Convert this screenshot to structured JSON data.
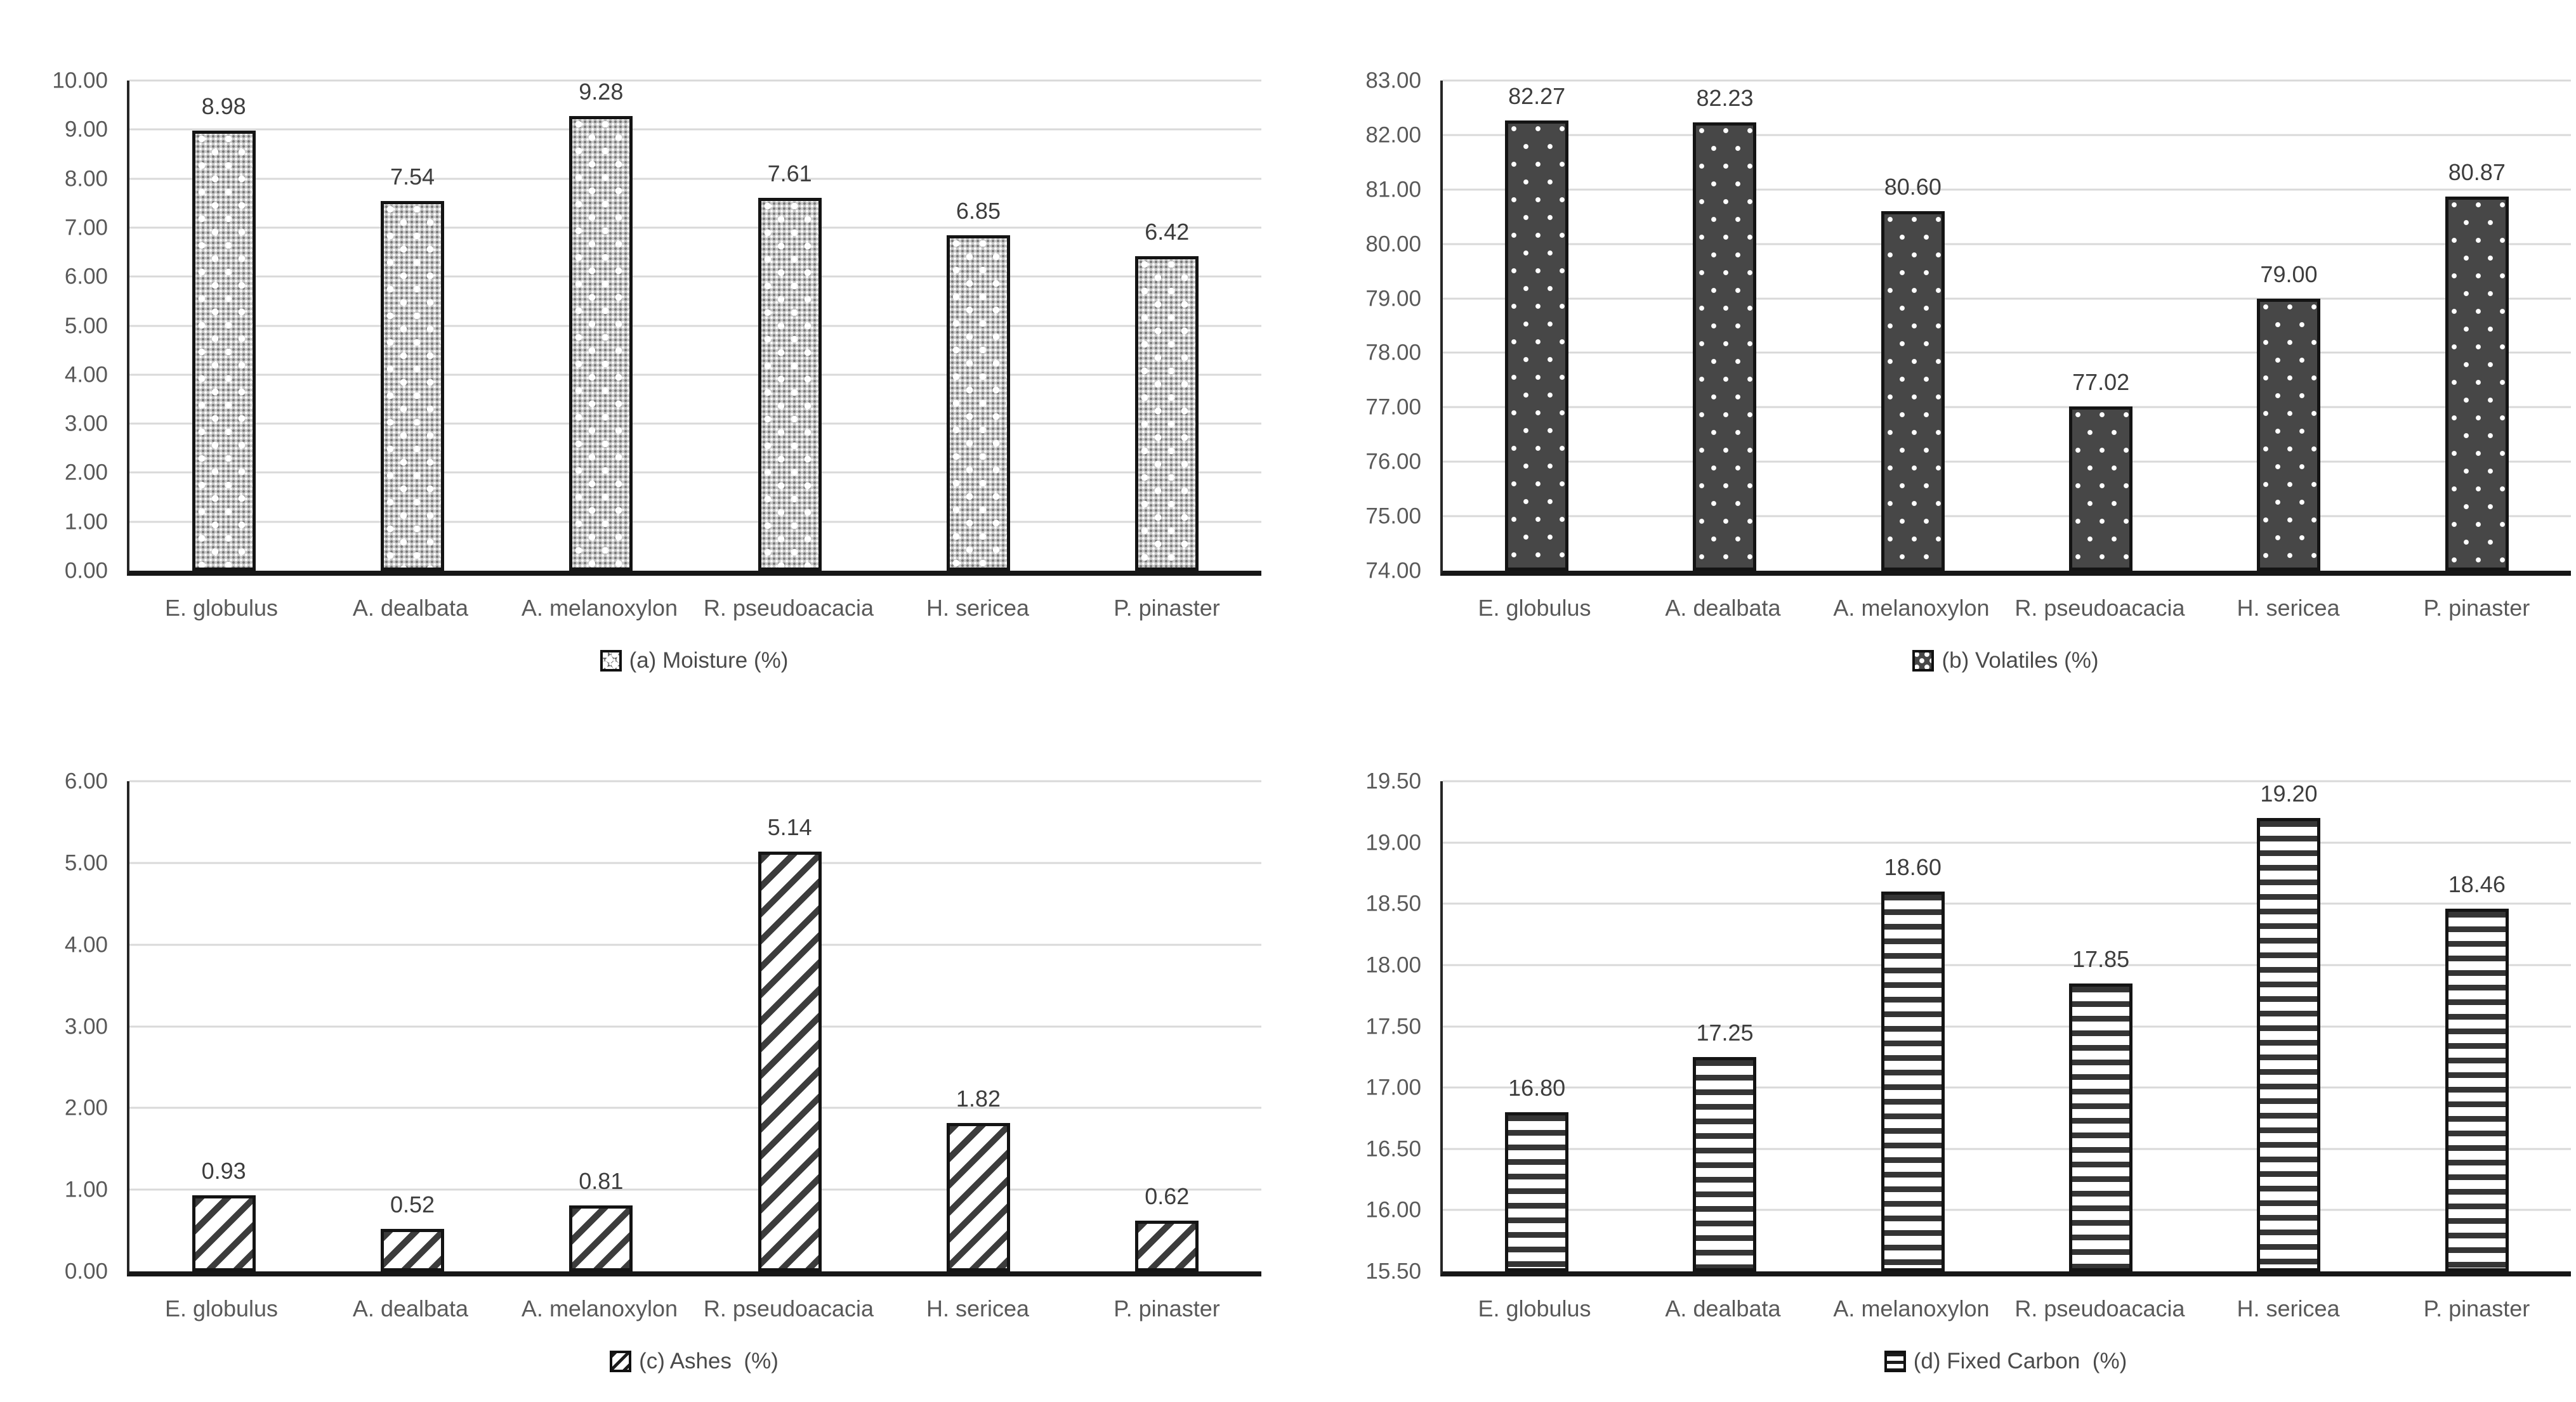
{
  "figure": {
    "background": "#ffffff",
    "grid_color": "#d9d9d9",
    "axis_color": "#262626",
    "baseline_color": "#171717",
    "tick_label_color": "#595959",
    "value_label_color": "#3d3d3d"
  },
  "chart_data": [
    {
      "id": "moisture",
      "type": "bar",
      "title": "",
      "legend": "(a) Moisture (%)",
      "legend_position": "bottom",
      "grid": true,
      "xlabel": "",
      "ylabel": "",
      "categories": [
        "E. globulus",
        "A. dealbata",
        "A. melanoxylon",
        "R. pseudoacacia",
        "H. sericea",
        "P. pinaster"
      ],
      "values": [
        8.98,
        7.54,
        9.28,
        7.61,
        6.85,
        6.42
      ],
      "value_labels": [
        "8.98",
        "7.54",
        "9.28",
        "7.61",
        "6.85",
        "6.42"
      ],
      "ylim": [
        0,
        10
      ],
      "ytick_step": 1.0,
      "tick_decimals": 2,
      "pattern": "dots-light"
    },
    {
      "id": "volatiles",
      "type": "bar",
      "title": "",
      "legend": "(b) Volatiles (%)",
      "legend_position": "bottom",
      "grid": true,
      "xlabel": "",
      "ylabel": "",
      "categories": [
        "E. globulus",
        "A. dealbata",
        "A. melanoxylon",
        "R. pseudoacacia",
        "H. sericea",
        "P. pinaster"
      ],
      "values": [
        82.27,
        82.23,
        80.6,
        77.02,
        79.0,
        80.87
      ],
      "value_labels": [
        "82.27",
        "82.23",
        "80.60",
        "77.02",
        "79.00",
        "80.87"
      ],
      "ylim": [
        74,
        83
      ],
      "ytick_step": 1.0,
      "tick_decimals": 2,
      "pattern": "dots-dark"
    },
    {
      "id": "ashes",
      "type": "bar",
      "title": "",
      "legend": "(c) Ashes  (%)",
      "legend_position": "bottom",
      "grid": true,
      "xlabel": "",
      "ylabel": "",
      "categories": [
        "E. globulus",
        "A. dealbata",
        "A. melanoxylon",
        "R. pseudoacacia",
        "H. sericea",
        "P. pinaster"
      ],
      "values": [
        0.93,
        0.52,
        0.81,
        5.14,
        1.82,
        0.62
      ],
      "value_labels": [
        "0.93",
        "0.52",
        "0.81",
        "5.14",
        "1.82",
        "0.62"
      ],
      "ylim": [
        0,
        6
      ],
      "ytick_step": 1.0,
      "tick_decimals": 2,
      "pattern": "diag-stripes"
    },
    {
      "id": "fixed-carbon",
      "type": "bar",
      "title": "",
      "legend": "(d) Fixed Carbon  (%)",
      "legend_position": "bottom",
      "grid": true,
      "xlabel": "",
      "ylabel": "",
      "categories": [
        "E. globulus",
        "A. dealbata",
        "A. melanoxylon",
        "R. pseudoacacia",
        "H. sericea",
        "P. pinaster"
      ],
      "values": [
        16.8,
        17.25,
        18.6,
        17.85,
        19.2,
        18.46
      ],
      "value_labels": [
        "16.80",
        "17.25",
        "18.60",
        "17.85",
        "19.20",
        "18.46"
      ],
      "ylim": [
        15.5,
        19.5
      ],
      "ytick_step": 0.5,
      "tick_decimals": 2,
      "pattern": "h-stripes"
    }
  ]
}
